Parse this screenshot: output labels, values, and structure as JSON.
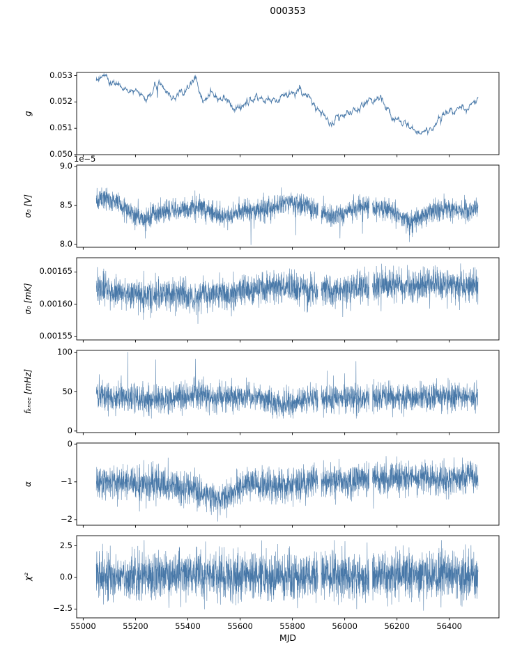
{
  "chart_data": {
    "type": "line",
    "title": "000353",
    "xlabel": "MJD",
    "line_color": "#4878a8",
    "xlim": [
      54975,
      56590
    ],
    "x_data_range": [
      55050,
      56510
    ],
    "xticks": [
      55000,
      55200,
      55400,
      55600,
      55800,
      56000,
      56200,
      56400
    ],
    "xtick_labels": [
      "55000",
      "55200",
      "55400",
      "55600",
      "55800",
      "56000",
      "56200",
      "56400"
    ],
    "gaps": [
      [
        55898,
        55910
      ],
      [
        56094,
        56106
      ]
    ],
    "panels": [
      {
        "id": "g",
        "ylabel": "g",
        "ylim": [
          0.05,
          0.05312
        ],
        "yticks": [
          0.05,
          0.051,
          0.052,
          0.053
        ],
        "ytick_labels": [
          "0.050",
          "0.051",
          "0.052",
          "0.053"
        ],
        "smooth": true,
        "n_points": 1200,
        "lw": 0.9,
        "noise": 5e-05,
        "spikes": {
          "prob": 0.002,
          "min": -0.0006,
          "max": -0.0002
        },
        "clamp": [
          0.05,
          0.0531
        ],
        "trend": [
          [
            55050,
            0.0528
          ],
          [
            55090,
            0.05295
          ],
          [
            55130,
            0.0526
          ],
          [
            55170,
            0.0524
          ],
          [
            55210,
            0.0522
          ],
          [
            55240,
            0.052
          ],
          [
            55290,
            0.0525
          ],
          [
            55340,
            0.0522
          ],
          [
            55380,
            0.0523
          ],
          [
            55430,
            0.0529
          ],
          [
            55460,
            0.052
          ],
          [
            55490,
            0.0523
          ],
          [
            55530,
            0.0521
          ],
          [
            55570,
            0.0519
          ],
          [
            55610,
            0.0518
          ],
          [
            55660,
            0.0522
          ],
          [
            55700,
            0.0521
          ],
          [
            55750,
            0.0522
          ],
          [
            55800,
            0.0524
          ],
          [
            55840,
            0.0523
          ],
          [
            55880,
            0.052
          ],
          [
            55920,
            0.0516
          ],
          [
            55950,
            0.0512
          ],
          [
            55990,
            0.0513
          ],
          [
            56030,
            0.0516
          ],
          [
            56070,
            0.0519
          ],
          [
            56110,
            0.052
          ],
          [
            56140,
            0.0521
          ],
          [
            56180,
            0.0515
          ],
          [
            56220,
            0.0513
          ],
          [
            56260,
            0.0509
          ],
          [
            56300,
            0.0508
          ],
          [
            56330,
            0.0509
          ],
          [
            56360,
            0.0513
          ],
          [
            56400,
            0.0515
          ],
          [
            56430,
            0.0517
          ],
          [
            56460,
            0.0516
          ],
          [
            56510,
            0.0519
          ]
        ]
      },
      {
        "id": "sigma0_V",
        "ylabel": "σ₀ [V]",
        "offset_text": "1e−5",
        "ylim": [
          7.96,
          9.02
        ],
        "yticks": [
          8.0,
          8.5,
          9.0
        ],
        "ytick_labels": [
          "8.0",
          "8.5",
          "9.0"
        ],
        "smooth": false,
        "n_points": 2600,
        "lw": 0.55,
        "noise": 0.07,
        "spikes": {
          "prob": 0.004,
          "min": -0.45,
          "max": -0.12
        },
        "clamp": [
          7.99,
          8.85
        ],
        "trend": [
          [
            55050,
            8.55
          ],
          [
            55080,
            8.6
          ],
          [
            55150,
            8.5
          ],
          [
            55230,
            8.3
          ],
          [
            55300,
            8.45
          ],
          [
            55380,
            8.45
          ],
          [
            55450,
            8.48
          ],
          [
            55500,
            8.4
          ],
          [
            55560,
            8.35
          ],
          [
            55620,
            8.42
          ],
          [
            55700,
            8.45
          ],
          [
            55780,
            8.55
          ],
          [
            55850,
            8.5
          ],
          [
            55900,
            8.42
          ],
          [
            55950,
            8.35
          ],
          [
            56000,
            8.4
          ],
          [
            56050,
            8.5
          ],
          [
            56100,
            8.48
          ],
          [
            56150,
            8.45
          ],
          [
            56200,
            8.4
          ],
          [
            56250,
            8.28
          ],
          [
            56300,
            8.35
          ],
          [
            56350,
            8.45
          ],
          [
            56400,
            8.45
          ],
          [
            56460,
            8.42
          ],
          [
            56510,
            8.45
          ]
        ]
      },
      {
        "id": "sigma0_mK",
        "ylabel": "σ₀ [mK]",
        "ylim": [
          0.001545,
          0.001672
        ],
        "yticks": [
          0.00155,
          0.0016,
          0.00165
        ],
        "ytick_labels": [
          "0.00155",
          "0.00160",
          "0.00165"
        ],
        "smooth": false,
        "n_points": 2600,
        "lw": 0.55,
        "noise": 1.2e-05,
        "spikes": {
          "prob": 0.0025,
          "min": -5e-05,
          "max": -1.2e-05
        },
        "clamp": [
          0.001562,
          0.001684
        ],
        "trend": [
          [
            55050,
            0.001628
          ],
          [
            55150,
            0.001618
          ],
          [
            55250,
            0.001612
          ],
          [
            55330,
            0.001618
          ],
          [
            55400,
            0.001612
          ],
          [
            55470,
            0.001615
          ],
          [
            55550,
            0.001618
          ],
          [
            55650,
            0.001625
          ],
          [
            55750,
            0.001628
          ],
          [
            55850,
            0.001622
          ],
          [
            55950,
            0.00162
          ],
          [
            56050,
            0.001625
          ],
          [
            56150,
            0.00163
          ],
          [
            56250,
            0.001628
          ],
          [
            56350,
            0.001632
          ],
          [
            56450,
            0.001628
          ],
          [
            56510,
            0.001625
          ]
        ]
      },
      {
        "id": "fknee",
        "ylabel": "fₖₙₑₑ [mHz]",
        "ylim": [
          -2,
          103
        ],
        "yticks": [
          0,
          50,
          100
        ],
        "ytick_labels": [
          "0",
          "50",
          "100"
        ],
        "smooth": false,
        "n_points": 2600,
        "lw": 0.55,
        "noise": 9,
        "spikes": {
          "prob": 0.002,
          "min": 25,
          "max": 58
        },
        "clamp": [
          16,
          101
        ],
        "trend": [
          [
            55050,
            48
          ],
          [
            55150,
            42
          ],
          [
            55250,
            40
          ],
          [
            55350,
            42
          ],
          [
            55450,
            45
          ],
          [
            55550,
            42
          ],
          [
            55650,
            45
          ],
          [
            55700,
            40
          ],
          [
            55750,
            33
          ],
          [
            55800,
            36
          ],
          [
            55850,
            40
          ],
          [
            55950,
            44
          ],
          [
            56050,
            42
          ],
          [
            56150,
            44
          ],
          [
            56250,
            42
          ],
          [
            56350,
            44
          ],
          [
            56450,
            43
          ],
          [
            56510,
            43
          ]
        ]
      },
      {
        "id": "alpha",
        "ylabel": "α",
        "ylim": [
          -2.15,
          0.03
        ],
        "yticks": [
          -2,
          -1,
          0
        ],
        "ytick_labels": [
          "−2",
          "−1",
          "0"
        ],
        "smooth": false,
        "n_points": 2600,
        "lw": 0.55,
        "noise": 0.21,
        "spikes": {
          "prob": 0.004,
          "min": -0.6,
          "max": -0.2
        },
        "clamp": [
          -2.05,
          -0.3
        ],
        "trend": [
          [
            55050,
            -1.0
          ],
          [
            55130,
            -1.0
          ],
          [
            55210,
            -1.02
          ],
          [
            55300,
            -1.05
          ],
          [
            55360,
            -1.15
          ],
          [
            55420,
            -1.1
          ],
          [
            55460,
            -1.3
          ],
          [
            55510,
            -1.45
          ],
          [
            55560,
            -1.35
          ],
          [
            55600,
            -1.15
          ],
          [
            55640,
            -1.0
          ],
          [
            55700,
            -1.1
          ],
          [
            55760,
            -1.08
          ],
          [
            55820,
            -1.05
          ],
          [
            55900,
            -1.0
          ],
          [
            55960,
            -0.98
          ],
          [
            56020,
            -0.95
          ],
          [
            56100,
            -0.92
          ],
          [
            56200,
            -0.9
          ],
          [
            56300,
            -0.92
          ],
          [
            56400,
            -0.9
          ],
          [
            56510,
            -0.88
          ]
        ]
      },
      {
        "id": "chi2",
        "ylabel": "χ²",
        "ylim": [
          -3.2,
          3.3
        ],
        "yticks": [
          -2.5,
          0.0,
          2.5
        ],
        "ytick_labels": [
          "−2.5",
          "0.0",
          "2.5"
        ],
        "smooth": false,
        "n_points": 2600,
        "lw": 0.55,
        "noise": 0.95,
        "spikes": {
          "prob": 0.01,
          "min": -1.6,
          "max": 1.6
        },
        "clamp": [
          -2.95,
          2.95
        ],
        "trend": [
          [
            55050,
            0.1
          ],
          [
            56510,
            0.1
          ]
        ]
      }
    ]
  }
}
